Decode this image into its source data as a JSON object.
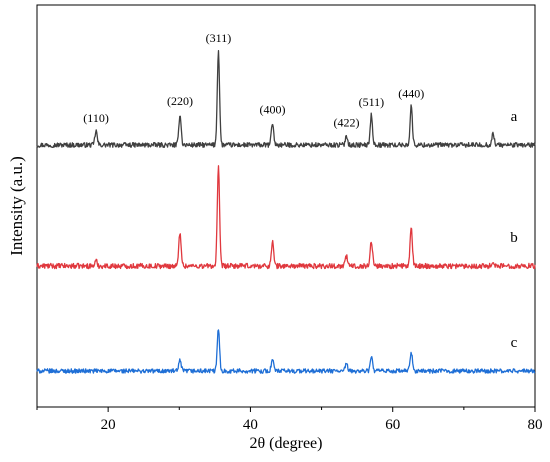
{
  "chart_data": {
    "type": "line",
    "xlabel": "2θ (degree)",
    "ylabel": "Intensity (a.u.)",
    "xlim": [
      10,
      80
    ],
    "xticks": [
      20,
      40,
      60,
      80
    ],
    "x_tick_labels": [
      "20",
      "40",
      "60",
      "80"
    ],
    "grid": false,
    "series_labels_position": "right end of each trace",
    "peak_labels": [
      {
        "label": "(110)",
        "x": 18.3
      },
      {
        "label": "(220)",
        "x": 30.1
      },
      {
        "label": "(311)",
        "x": 35.5
      },
      {
        "label": "(400)",
        "x": 43.1
      },
      {
        "label": "(422)",
        "x": 53.5
      },
      {
        "label": "(511)",
        "x": 57.0
      },
      {
        "label": "(440)",
        "x": 62.6
      }
    ],
    "series": [
      {
        "name": "a",
        "color": "#404040",
        "peaks": [
          {
            "x": 18.3,
            "height": 0.15
          },
          {
            "x": 30.1,
            "height": 0.33
          },
          {
            "x": 35.5,
            "height": 1.0
          },
          {
            "x": 43.1,
            "height": 0.24
          },
          {
            "x": 53.5,
            "height": 0.1
          },
          {
            "x": 57.0,
            "height": 0.32
          },
          {
            "x": 62.6,
            "height": 0.41
          },
          {
            "x": 74.1,
            "height": 0.12
          }
        ]
      },
      {
        "name": "b",
        "color": "#e0383e",
        "peaks": [
          {
            "x": 18.3,
            "height": 0.05
          },
          {
            "x": 30.1,
            "height": 0.35
          },
          {
            "x": 35.5,
            "height": 1.0
          },
          {
            "x": 43.1,
            "height": 0.25
          },
          {
            "x": 53.5,
            "height": 0.1
          },
          {
            "x": 57.0,
            "height": 0.26
          },
          {
            "x": 62.6,
            "height": 0.38
          },
          {
            "x": 74.1,
            "height": 0.05
          }
        ]
      },
      {
        "name": "c",
        "color": "#1f6fd6",
        "peaks": [
          {
            "x": 30.1,
            "height": 0.25
          },
          {
            "x": 35.5,
            "height": 1.0
          },
          {
            "x": 43.1,
            "height": 0.28
          },
          {
            "x": 53.5,
            "height": 0.16
          },
          {
            "x": 57.0,
            "height": 0.33
          },
          {
            "x": 62.6,
            "height": 0.45
          }
        ]
      }
    ]
  }
}
